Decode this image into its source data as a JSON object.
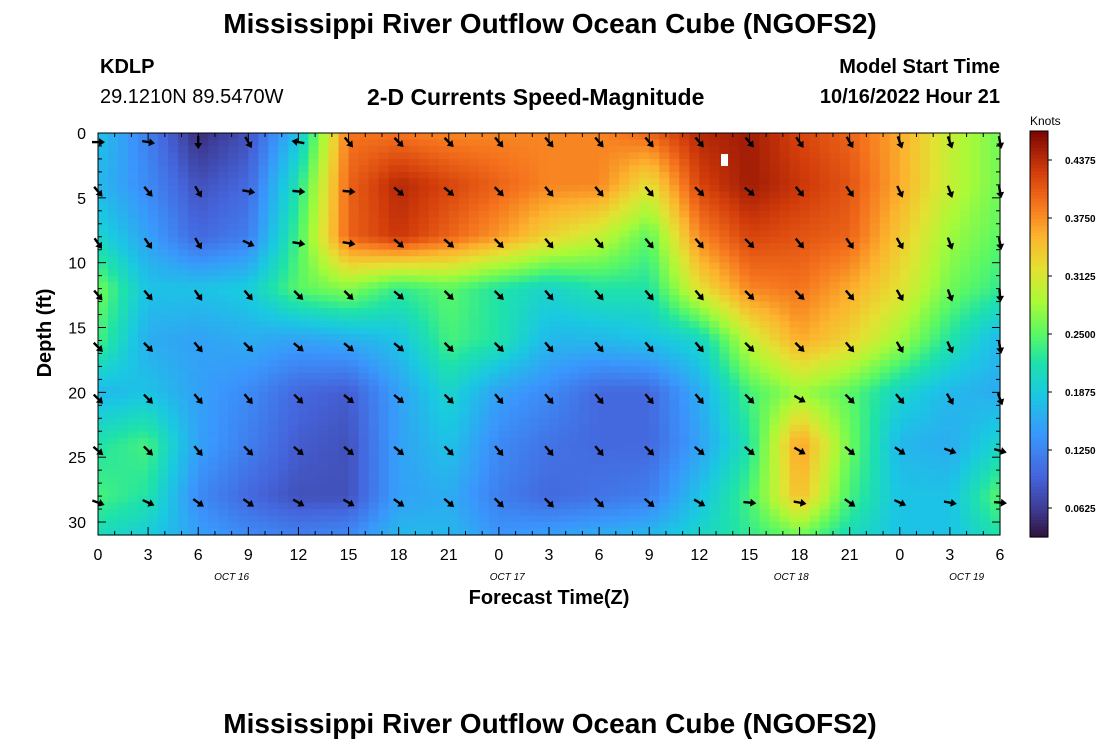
{
  "header": {
    "title": "Mississippi River Outflow Ocean Cube (NGOFS2)",
    "station_id": "KDLP",
    "station_coords": "29.1210N  89.5470W",
    "subtitle": "2-D Currents Speed-Magnitude",
    "model_start_label": "Model Start Time",
    "model_start_time": "10/16/2022 Hour 21"
  },
  "footer": {
    "title": "Mississippi River Outflow Ocean Cube (NGOFS2)"
  },
  "chart_data": {
    "type": "heatmap",
    "title": "2-D Currents Speed-Magnitude",
    "xlabel": "Forecast Time(Z)",
    "ylabel": "Depth (ft)",
    "xlim": [
      0,
      54
    ],
    "ylim": [
      0,
      31
    ],
    "x_tick_values": [
      0,
      3,
      6,
      9,
      12,
      15,
      18,
      21,
      24,
      27,
      30,
      33,
      36,
      39,
      42,
      45,
      48,
      51,
      54
    ],
    "x_tick_labels": [
      "0",
      "3",
      "6",
      "9",
      "12",
      "15",
      "18",
      "21",
      "0",
      "3",
      "6",
      "9",
      "12",
      "15",
      "18",
      "21",
      "0",
      "3",
      "6"
    ],
    "date_labels": [
      {
        "text": "OCT 16",
        "x": 8
      },
      {
        "text": "OCT 17",
        "x": 24.5
      },
      {
        "text": "OCT 18",
        "x": 41.5
      },
      {
        "text": "OCT 19",
        "x": 52
      }
    ],
    "y_tick_values": [
      0,
      5,
      10,
      15,
      20,
      25,
      30
    ],
    "y_tick_labels": [
      "0",
      "5",
      "10",
      "15",
      "20",
      "25",
      "30"
    ],
    "colorbar": {
      "label": "Knots",
      "ticks": [
        "0.4375",
        "0.3750",
        "0.3125",
        "0.2500",
        "0.1875",
        "0.1250",
        "0.0625"
      ],
      "tick_values": [
        0.4375,
        0.375,
        0.3125,
        0.25,
        0.1875,
        0.125,
        0.0625
      ],
      "range": [
        0.03125,
        0.46875
      ]
    },
    "speed_x_hours": [
      0,
      3,
      6,
      9,
      12,
      15,
      18,
      21,
      24,
      27,
      30,
      33,
      36,
      39,
      42,
      45,
      48,
      51,
      54
    ],
    "speed_depths_ft": [
      0,
      4,
      8,
      12,
      16,
      20,
      24,
      28,
      31
    ],
    "speed_knots": [
      [
        0.18,
        0.12,
        0.05,
        0.08,
        0.18,
        0.39,
        0.39,
        0.38,
        0.38,
        0.38,
        0.38,
        0.4,
        0.44,
        0.45,
        0.42,
        0.4,
        0.36,
        0.3,
        0.26
      ],
      [
        0.17,
        0.13,
        0.08,
        0.1,
        0.22,
        0.4,
        0.44,
        0.42,
        0.4,
        0.38,
        0.38,
        0.32,
        0.42,
        0.45,
        0.43,
        0.41,
        0.36,
        0.3,
        0.26
      ],
      [
        0.2,
        0.15,
        0.1,
        0.12,
        0.24,
        0.4,
        0.43,
        0.4,
        0.37,
        0.33,
        0.3,
        0.25,
        0.38,
        0.42,
        0.41,
        0.4,
        0.34,
        0.28,
        0.25
      ],
      [
        0.26,
        0.18,
        0.18,
        0.19,
        0.25,
        0.27,
        0.23,
        0.25,
        0.22,
        0.2,
        0.22,
        0.22,
        0.32,
        0.38,
        0.39,
        0.36,
        0.32,
        0.26,
        0.23
      ],
      [
        0.24,
        0.16,
        0.15,
        0.16,
        0.15,
        0.16,
        0.18,
        0.24,
        0.22,
        0.17,
        0.17,
        0.18,
        0.2,
        0.3,
        0.36,
        0.33,
        0.28,
        0.22,
        0.17
      ],
      [
        0.17,
        0.18,
        0.15,
        0.13,
        0.1,
        0.09,
        0.15,
        0.2,
        0.15,
        0.13,
        0.1,
        0.1,
        0.16,
        0.24,
        0.28,
        0.25,
        0.2,
        0.17,
        0.16
      ],
      [
        0.22,
        0.24,
        0.15,
        0.12,
        0.09,
        0.08,
        0.15,
        0.18,
        0.13,
        0.11,
        0.1,
        0.1,
        0.15,
        0.22,
        0.37,
        0.26,
        0.17,
        0.16,
        0.2
      ],
      [
        0.24,
        0.22,
        0.13,
        0.1,
        0.08,
        0.08,
        0.15,
        0.16,
        0.12,
        0.1,
        0.11,
        0.12,
        0.18,
        0.24,
        0.35,
        0.24,
        0.18,
        0.18,
        0.25
      ],
      [
        0.21,
        0.19,
        0.15,
        0.13,
        0.12,
        0.13,
        0.17,
        0.17,
        0.14,
        0.15,
        0.16,
        0.17,
        0.2,
        0.23,
        0.26,
        0.21,
        0.18,
        0.18,
        0.22
      ]
    ],
    "arrow_x_hours": [
      0,
      3,
      6,
      9,
      12,
      15,
      18,
      21,
      24,
      27,
      30,
      33,
      36,
      39,
      42,
      45,
      48,
      51,
      54
    ],
    "arrow_depths_ft": [
      0.7,
      4.5,
      8.5,
      12.5,
      16.5,
      20.5,
      24.5,
      28.5
    ],
    "arrow_direction_deg": [
      [
        90,
        100,
        180,
        150,
        280,
        140,
        135,
        135,
        140,
        140,
        140,
        140,
        140,
        140,
        145,
        150,
        160,
        160,
        170
      ],
      [
        140,
        140,
        150,
        100,
        95,
        95,
        130,
        130,
        135,
        140,
        140,
        140,
        135,
        130,
        140,
        145,
        155,
        160,
        170
      ],
      [
        145,
        145,
        150,
        115,
        100,
        100,
        130,
        130,
        135,
        140,
        140,
        140,
        140,
        135,
        140,
        145,
        150,
        160,
        170
      ],
      [
        140,
        140,
        145,
        140,
        135,
        135,
        130,
        135,
        135,
        140,
        140,
        140,
        140,
        135,
        135,
        140,
        150,
        160,
        175
      ],
      [
        135,
        135,
        140,
        135,
        130,
        130,
        130,
        135,
        135,
        140,
        140,
        140,
        140,
        135,
        135,
        140,
        150,
        155,
        170
      ],
      [
        135,
        135,
        140,
        140,
        135,
        130,
        130,
        135,
        140,
        140,
        140,
        140,
        140,
        135,
        120,
        135,
        140,
        150,
        160
      ],
      [
        130,
        135,
        140,
        135,
        130,
        130,
        130,
        135,
        140,
        140,
        140,
        135,
        130,
        130,
        120,
        130,
        125,
        110,
        105
      ],
      [
        110,
        115,
        125,
        125,
        120,
        120,
        125,
        130,
        135,
        135,
        135,
        130,
        120,
        95,
        100,
        125,
        115,
        100,
        95
      ]
    ]
  }
}
